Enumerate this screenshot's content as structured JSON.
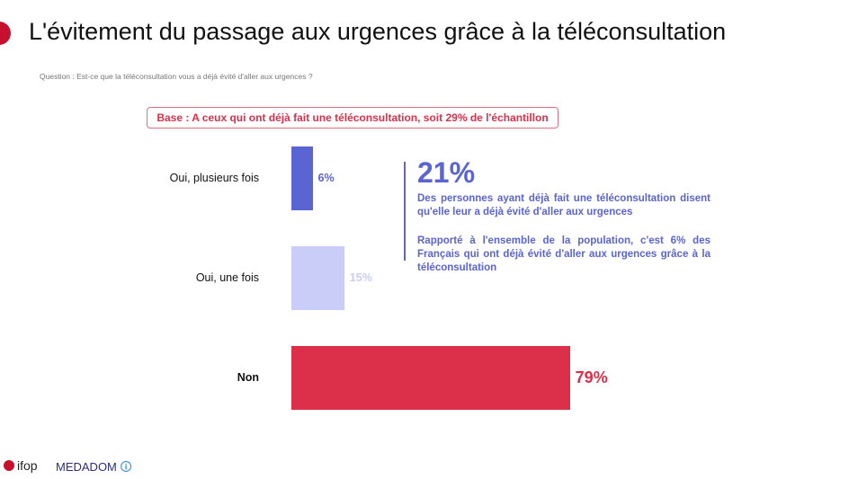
{
  "header": {
    "title": "L'évitement du passage aux urgences grâce à la téléconsultation",
    "question": "Question : Est-ce que la téléconsultation vous a déjà évité d'aller aux urgences ?",
    "base": "Base : A ceux qui ont déjà fait une téléconsultation, soit 29% de l'échantillon"
  },
  "chart_data": {
    "type": "bar",
    "orientation": "horizontal",
    "categories": [
      "Oui, plusieurs fois",
      "Oui, une fois",
      "Non"
    ],
    "values": [
      6,
      15,
      79
    ],
    "value_labels": [
      "6%",
      "15%",
      "79%"
    ],
    "colors": [
      "#5a64d2",
      "#c9cdf7",
      "#dc2f4a"
    ],
    "xlim": [
      0,
      100
    ],
    "grid": false
  },
  "callout": {
    "headline": "21%",
    "text1": "Des personnes ayant déjà fait une téléconsultation disent qu'elle leur a déjà évité d'aller aux urgences",
    "text2": "Rapporté à l'ensemble de la population, c'est 6% des Français qui ont déjà évité d'aller aux urgences grâce à la téléconsultation",
    "color": "#5a64d2"
  },
  "footer": {
    "logo1": "ifop",
    "logo2": "MEDADOM"
  }
}
